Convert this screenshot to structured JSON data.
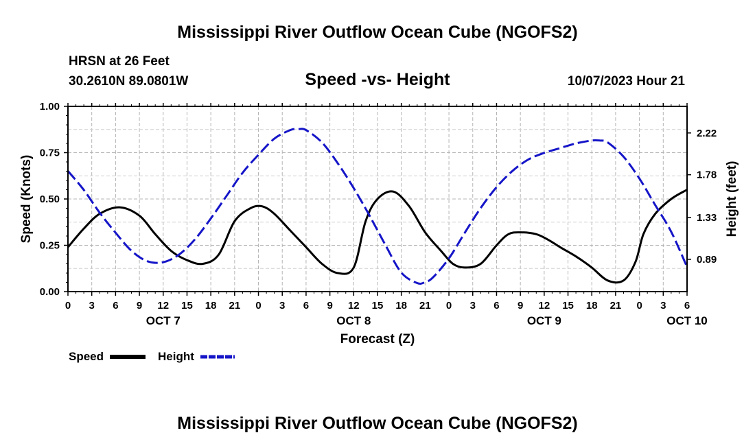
{
  "page": {
    "title": "Mississippi River Outflow Ocean Cube (NGOFS2)",
    "station": "HRSN at 26 Feet",
    "coords": "30.2610N  89.0801W",
    "datetime": "10/07/2023 Hour 21",
    "footer_title": "Mississippi River Outflow Ocean Cube (NGOFS2)"
  },
  "legend": {
    "speed_label": "Speed",
    "height_label": "Height"
  },
  "colors": {
    "speed": "#000000",
    "height": "#1515c8",
    "grid": "#b4b4b4"
  },
  "chart_data": {
    "type": "line",
    "title": "Speed -vs- Height",
    "xlabel": "Forecast (Z)",
    "ylabel": "Speed (Knots)",
    "y2label": "Height (feet)",
    "xlim": [
      0,
      78
    ],
    "ylim": [
      0,
      1.0
    ],
    "y2lim": [
      0.55,
      2.5
    ],
    "x_ticks": [
      0,
      3,
      6,
      9,
      12,
      15,
      18,
      21,
      24,
      27,
      30,
      33,
      36,
      39,
      42,
      45,
      48,
      51,
      54,
      57,
      60,
      63,
      66,
      69,
      72,
      75,
      78
    ],
    "x_tick_labels": [
      "0",
      "3",
      "6",
      "9",
      "12",
      "15",
      "18",
      "21",
      "0",
      "3",
      "6",
      "9",
      "12",
      "15",
      "18",
      "21",
      "0",
      "3",
      "6",
      "9",
      "12",
      "15",
      "18",
      "21",
      "0",
      "3",
      "6"
    ],
    "day_labels": [
      {
        "x": 12,
        "label": "OCT 7"
      },
      {
        "x": 36,
        "label": "OCT 8"
      },
      {
        "x": 60,
        "label": "OCT 9"
      },
      {
        "x": 78,
        "label": "OCT 10"
      }
    ],
    "y_ticks": [
      0,
      0.25,
      0.5,
      0.75,
      1.0
    ],
    "y_tick_labels": [
      "0.00",
      "0.25",
      "0.50",
      "0.75",
      "1.00"
    ],
    "y2_ticks": [
      0.89,
      1.33,
      1.78,
      2.22
    ],
    "y2_tick_labels": [
      "0.89",
      "1.33",
      "1.78",
      "2.22"
    ],
    "series": [
      {
        "name": "Speed",
        "axis": "left",
        "style": "solid",
        "x": [
          0,
          2,
          4,
          6.5,
          9,
          11,
          13,
          15,
          17,
          19,
          21,
          23,
          24.5,
          26,
          28,
          30,
          32,
          34,
          36,
          37.5,
          39,
          41,
          43,
          45,
          47,
          48.5,
          50,
          52,
          54,
          55.5,
          57,
          59,
          60.5,
          62,
          64,
          66,
          68,
          70,
          71.5,
          72.5,
          74,
          76,
          78
        ],
        "values": [
          0.24,
          0.34,
          0.42,
          0.455,
          0.41,
          0.31,
          0.22,
          0.17,
          0.15,
          0.2,
          0.38,
          0.45,
          0.46,
          0.42,
          0.33,
          0.24,
          0.15,
          0.1,
          0.13,
          0.38,
          0.5,
          0.54,
          0.46,
          0.32,
          0.22,
          0.15,
          0.13,
          0.15,
          0.25,
          0.31,
          0.32,
          0.31,
          0.28,
          0.24,
          0.19,
          0.13,
          0.06,
          0.06,
          0.16,
          0.31,
          0.42,
          0.5,
          0.55
        ]
      },
      {
        "name": "Height",
        "axis": "right",
        "style": "dashed",
        "x": [
          0,
          2,
          4,
          6,
          8,
          10,
          12,
          14,
          16,
          18,
          20,
          22,
          24,
          26,
          28,
          29,
          30,
          32,
          34,
          36,
          38,
          40,
          42,
          44,
          45,
          46,
          48,
          50,
          52,
          54,
          56,
          58,
          60,
          62,
          64,
          66,
          67,
          68,
          70,
          72,
          74,
          76,
          78
        ],
        "values": [
          1.82,
          1.62,
          1.38,
          1.17,
          0.98,
          0.87,
          0.86,
          0.94,
          1.1,
          1.32,
          1.56,
          1.8,
          1.99,
          2.16,
          2.25,
          2.26,
          2.25,
          2.12,
          1.9,
          1.64,
          1.35,
          1.04,
          0.75,
          0.64,
          0.65,
          0.7,
          0.9,
          1.17,
          1.43,
          1.65,
          1.82,
          1.94,
          2.01,
          2.06,
          2.11,
          2.14,
          2.14,
          2.12,
          1.97,
          1.74,
          1.46,
          1.18,
          0.81
        ]
      }
    ]
  }
}
